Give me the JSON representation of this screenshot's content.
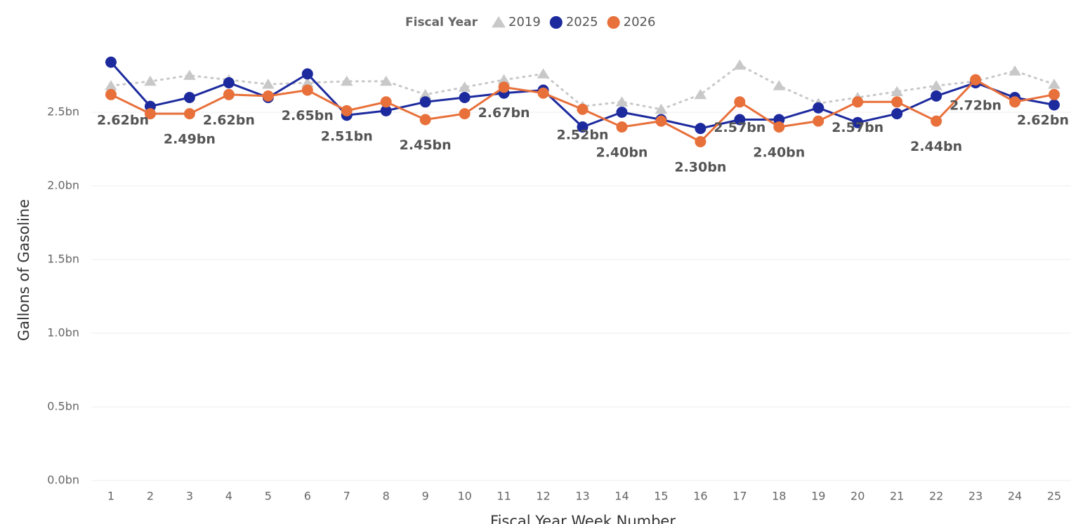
{
  "chart_data": {
    "type": "line",
    "legend_title": "Fiscal Year",
    "xlabel": "Fiscal Year Week Number",
    "ylabel": "Gallons of Gasoline",
    "categories": [
      1,
      2,
      3,
      4,
      5,
      6,
      7,
      8,
      9,
      10,
      11,
      12,
      13,
      14,
      15,
      16,
      17,
      18,
      19,
      20,
      21,
      22,
      23,
      24,
      25
    ],
    "ylim": [
      0,
      2.85
    ],
    "yticks": [
      {
        "value": 0,
        "label": "0.0bn"
      },
      {
        "value": 0.5,
        "label": "0.5bn"
      },
      {
        "value": 1.0,
        "label": "1.0bn"
      },
      {
        "value": 1.5,
        "label": "1.5bn"
      },
      {
        "value": 2.0,
        "label": "2.0bn"
      },
      {
        "value": 2.5,
        "label": "2.5bn"
      }
    ],
    "grid": true,
    "legend": "top",
    "series": [
      {
        "name": "2019",
        "color": "#c8c8c8",
        "marker": "triangle",
        "dash": "dotted",
        "values": [
          2.68,
          2.71,
          2.75,
          2.72,
          2.69,
          2.7,
          2.71,
          2.71,
          2.62,
          2.67,
          2.72,
          2.76,
          2.54,
          2.57,
          2.52,
          2.62,
          2.82,
          2.68,
          2.56,
          2.6,
          2.64,
          2.68,
          2.71,
          2.78,
          2.69
        ]
      },
      {
        "name": "2025",
        "color": "#1c2a9e",
        "marker": "circle",
        "values": [
          2.84,
          2.54,
          2.6,
          2.7,
          2.6,
          2.76,
          2.48,
          2.51,
          2.57,
          2.6,
          2.63,
          2.65,
          2.4,
          2.5,
          2.45,
          2.39,
          2.45,
          2.45,
          2.53,
          2.43,
          2.49,
          2.61,
          2.7,
          2.6,
          2.55
        ]
      },
      {
        "name": "2026",
        "color": "#e8703a",
        "marker": "circle",
        "values": [
          2.62,
          2.49,
          2.49,
          2.62,
          2.61,
          2.65,
          2.51,
          2.57,
          2.45,
          2.49,
          2.67,
          2.63,
          2.52,
          2.4,
          2.44,
          2.3,
          2.57,
          2.4,
          2.44,
          2.57,
          2.57,
          2.44,
          2.72,
          2.57,
          2.62
        ],
        "value_labels": [
          "2.62bn",
          null,
          "2.49bn",
          "2.62bn",
          null,
          "2.65bn",
          "2.51bn",
          null,
          "2.45bn",
          null,
          "2.67bn",
          null,
          "2.52bn",
          "2.40bn",
          null,
          "2.30bn",
          "2.57bn",
          "2.40bn",
          null,
          "2.57bn",
          null,
          "2.44bn",
          "2.72bn",
          null,
          "2.62bn"
        ]
      }
    ]
  }
}
